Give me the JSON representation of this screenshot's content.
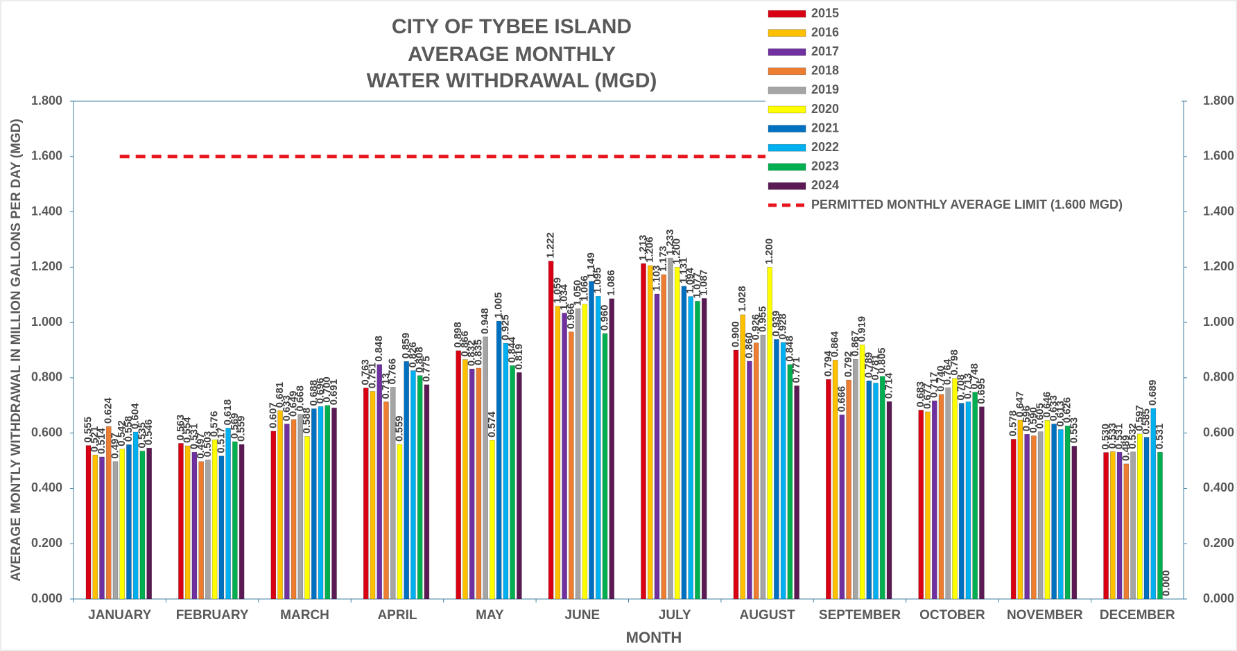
{
  "chart_data": {
    "type": "bar",
    "title": [
      "CITY OF TYBEE ISLAND",
      "AVERAGE MONTHLY",
      "WATER WITHDRAWAL (MGD)"
    ],
    "x_label": "MONTH",
    "y_label": "AVERAGE MONTLY WITHDRAWAL IN MILLION GALLONS PER DAY (MGD)",
    "categories": [
      "JANUARY",
      "FEBRUARY",
      "MARCH",
      "APRIL",
      "MAY",
      "JUNE",
      "JULY",
      "AUGUST",
      "SEPTEMBER",
      "OCTOBER",
      "NOVEMBER",
      "DECEMBER"
    ],
    "ylim": [
      0,
      1.8
    ],
    "yticks": [
      {
        "value": 0,
        "label": "0.000"
      },
      {
        "value": 0.2,
        "label": "0.200"
      },
      {
        "value": 0.4,
        "label": "0.400"
      },
      {
        "value": 0.6,
        "label": "0.600"
      },
      {
        "value": 0.8,
        "label": "0.800"
      },
      {
        "value": 1,
        "label": "1.000"
      },
      {
        "value": 1.2,
        "label": "1.200"
      },
      {
        "value": 1.4,
        "label": "1.400"
      },
      {
        "value": 1.6,
        "label": "1.600"
      },
      {
        "value": 1.8,
        "label": "1.800"
      }
    ],
    "y2lim": [
      0,
      1.8
    ],
    "y2ticks": [
      {
        "value": 0,
        "label": "0.000"
      },
      {
        "value": 0.2,
        "label": "0.200"
      },
      {
        "value": 0.4,
        "label": "0.400"
      },
      {
        "value": 0.6,
        "label": "0.600"
      },
      {
        "value": 0.8,
        "label": "0.800"
      },
      {
        "value": 1,
        "label": "1.000"
      },
      {
        "value": 1.2,
        "label": "1.200"
      },
      {
        "value": 1.4,
        "label": "1.400"
      },
      {
        "value": 1.6,
        "label": "1.600"
      },
      {
        "value": 1.8,
        "label": "1.800"
      }
    ],
    "legend": "top-right",
    "series": [
      {
        "name": "2015",
        "color": "#d80012",
        "values": [
          0.555,
          0.563,
          0.607,
          0.763,
          0.898,
          1.222,
          1.213,
          0.9,
          0.794,
          0.683,
          0.578,
          0.53
        ],
        "value_labels": [
          "0.555",
          "0.563",
          "0.607",
          "0.763",
          "0.898",
          "1.222",
          "1.213",
          "0.900",
          "0.794",
          "0.683",
          "0.578",
          "0.530"
        ]
      },
      {
        "name": "2016",
        "color": "#ffc000",
        "values": [
          0.521,
          0.554,
          0.681,
          0.751,
          0.866,
          1.059,
          1.206,
          1.028,
          0.864,
          0.677,
          0.647,
          0.533
        ],
        "value_labels": [
          "0.521",
          "0.554",
          "0.681",
          "0.751",
          "0.866",
          "1.059",
          "1.206",
          "1.028",
          "0.864",
          "0.677",
          "0.647",
          "0.533"
        ]
      },
      {
        "name": "2017",
        "color": "#7030a0",
        "values": [
          0.514,
          0.531,
          0.633,
          0.848,
          0.832,
          1.034,
          1.103,
          0.86,
          0.666,
          0.717,
          0.596,
          0.531
        ],
        "value_labels": [
          "0.514",
          "0.531",
          "0.633",
          "0.848",
          "0.832",
          "1.034",
          "1.103",
          "0.860",
          "0.666",
          "0.717",
          "0.596",
          "0.531"
        ]
      },
      {
        "name": "2018",
        "color": "#ed7d31",
        "values": [
          0.624,
          0.497,
          0.649,
          0.713,
          0.835,
          0.966,
          1.173,
          0.926,
          0.792,
          0.74,
          0.59,
          0.489
        ],
        "value_labels": [
          "0.624",
          "0.497",
          "0.649",
          "0.713",
          "0.835",
          "0.966",
          "1.173",
          "0.926",
          "0.792",
          "0.740",
          "0.590",
          "0.489"
        ]
      },
      {
        "name": "2019",
        "color": "#a5a5a5",
        "values": [
          0.497,
          0.503,
          0.668,
          0.766,
          0.948,
          1.05,
          1.233,
          0.955,
          0.867,
          0.764,
          0.605,
          0.532
        ],
        "value_labels": [
          "0.497",
          "0.503",
          "0.668",
          "0.766",
          "0.948",
          "1.050",
          "1.233",
          "0.955",
          "0.867",
          "0.764",
          "0.605",
          "0.532"
        ]
      },
      {
        "name": "2020",
        "color": "#ffff00",
        "values": [
          0.542,
          0.576,
          0.588,
          0.559,
          0.574,
          1.066,
          1.2,
          1.2,
          0.919,
          0.798,
          0.646,
          0.597
        ],
        "value_labels": [
          "0.542",
          "0.576",
          "0.588",
          "0.559",
          "0.574",
          "1.066",
          "1.200",
          "1.200",
          "0.919",
          "0.798",
          "0.646",
          "0.597"
        ]
      },
      {
        "name": "2021",
        "color": "#0070c0",
        "values": [
          0.558,
          0.517,
          0.688,
          0.859,
          1.005,
          1.149,
          1.131,
          0.939,
          0.789,
          0.708,
          0.633,
          0.585
        ],
        "value_labels": [
          "0.558",
          "0.517",
          "0.688",
          "0.859",
          "1.005",
          "1.149",
          "1.131",
          "0.939",
          "0.789",
          "0.708",
          "0.633",
          "0.585"
        ]
      },
      {
        "name": "2022",
        "color": "#00b0f0",
        "values": [
          0.604,
          0.618,
          0.696,
          0.826,
          0.925,
          1.095,
          1.094,
          0.928,
          0.781,
          0.713,
          0.613,
          0.689
        ],
        "value_labels": [
          "0.604",
          "0.618",
          "0.696",
          "0.826",
          "0.925",
          "1.095",
          "1.094",
          "0.928",
          "0.781",
          "0.713",
          "0.613",
          "0.689"
        ]
      },
      {
        "name": "2023",
        "color": "#00b050",
        "values": [
          0.535,
          0.569,
          0.7,
          0.808,
          0.844,
          0.96,
          1.077,
          0.848,
          0.805,
          0.748,
          0.626,
          0.531
        ],
        "value_labels": [
          "0.535",
          "0.569",
          "0.700",
          "0.808",
          "0.844",
          "0.960",
          "1.077",
          "0.848",
          "0.805",
          "0.748",
          "0.626",
          "0.531"
        ]
      },
      {
        "name": "2024",
        "color": "#5c1a55",
        "values": [
          0.546,
          0.559,
          0.691,
          0.775,
          0.819,
          1.086,
          1.087,
          0.771,
          0.714,
          0.695,
          0.553,
          0
        ],
        "value_labels": [
          "0.546",
          "0.559",
          "0.691",
          "0.775",
          "0.819",
          "1.086",
          "1.087",
          "0.771",
          "0.714",
          "0.695",
          "0.553",
          "0.000"
        ]
      }
    ],
    "limit": {
      "name": "PERMITTED MONTHLY AVERAGE LIMIT (1.600 MGD)",
      "value": 1.6,
      "color": "#e8141c"
    }
  }
}
